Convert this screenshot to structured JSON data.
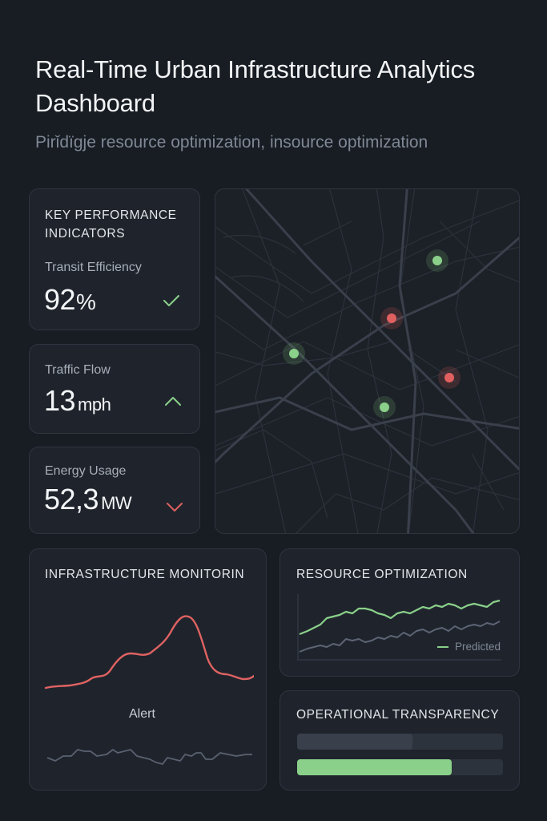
{
  "header": {
    "title": "Real-Time Urban Infrastructure Analytics Dashboard",
    "subtitle": "Pirǐdïgje resource optimization, insource optimization"
  },
  "kpis": {
    "section_title": "KEY PERFORMANCE INDICATORS",
    "items": [
      {
        "label": "Transit Efficiency",
        "value": "92",
        "unit": "%",
        "trend": "check",
        "trend_color": "#8ad08a"
      },
      {
        "label": "Traffic Flow",
        "value": "13",
        "unit": "mph",
        "trend": "up",
        "trend_color": "#8ad08a"
      },
      {
        "label": "Energy Usage",
        "value": "52,3",
        "unit": "MW",
        "trend": "down",
        "trend_color": "#e06060"
      }
    ]
  },
  "map": {
    "markers": [
      {
        "status": "green"
      },
      {
        "status": "red"
      },
      {
        "status": "green"
      },
      {
        "status": "red"
      },
      {
        "status": "green"
      }
    ]
  },
  "infrastructure": {
    "title": "INFRASTRUCTURE MONITORIN",
    "alert_label": "Alert",
    "line_color": "#e06262",
    "secondary_color": "#5a6170"
  },
  "resource": {
    "title": "RESOURCE OPTIMIZATION",
    "legend": "Predicted",
    "actual_color": "#8ad08a",
    "predicted_color": "#5d6474"
  },
  "operational": {
    "title": "OPERATIONAL TRANSPARENCY",
    "bars": [
      {
        "level": 0.56,
        "color": "#3a404b"
      },
      {
        "level": 0.75,
        "color": "#8ad08a"
      }
    ]
  },
  "colors": {
    "background": "#181c23",
    "card": "#1f242c",
    "accent_green": "#8ad08a",
    "accent_red": "#e06060"
  }
}
